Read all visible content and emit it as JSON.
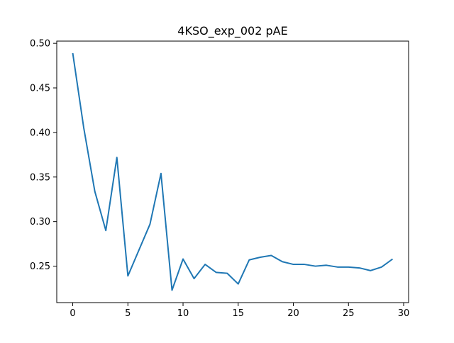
{
  "chart_data": {
    "type": "line",
    "title": "4KSO_exp_002 pAE",
    "xlabel": "",
    "ylabel": "",
    "xlim": [
      -1.45,
      30.45
    ],
    "ylim": [
      0.2091,
      0.5025
    ],
    "x_ticks": [
      0,
      5,
      10,
      15,
      20,
      25,
      30
    ],
    "y_ticks": [
      0.25,
      0.3,
      0.35,
      0.4,
      0.45,
      0.5
    ],
    "x_tick_labels": [
      "0",
      "5",
      "10",
      "15",
      "20",
      "25",
      "30"
    ],
    "y_tick_labels": [
      "0.25",
      "0.30",
      "0.35",
      "0.40",
      "0.45",
      "0.50"
    ],
    "grid": false,
    "legend": "none",
    "series": [
      {
        "color": "#1f77b4",
        "x": [
          0,
          1,
          2,
          3,
          4,
          5,
          6,
          7,
          8,
          9,
          10,
          11,
          12,
          13,
          14,
          15,
          16,
          17,
          18,
          19,
          20,
          21,
          22,
          23,
          24,
          25,
          26,
          27,
          28,
          29
        ],
        "y": [
          0.489,
          0.405,
          0.334,
          0.29,
          0.372,
          0.239,
          0.268,
          0.297,
          0.354,
          0.223,
          0.258,
          0.236,
          0.252,
          0.243,
          0.242,
          0.23,
          0.257,
          0.26,
          0.262,
          0.255,
          0.252,
          0.252,
          0.25,
          0.251,
          0.249,
          0.249,
          0.248,
          0.245,
          0.249,
          0.258
        ]
      }
    ]
  }
}
